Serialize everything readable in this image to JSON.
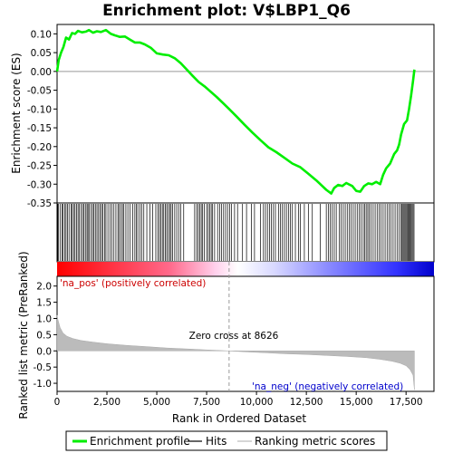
{
  "chart_data": {
    "type": "line",
    "title": "Enrichment plot: V$LBP1_Q6",
    "panels": {
      "es": {
        "ylabel": "Enrichment score (ES)",
        "ylim": [
          -0.35,
          0.125
        ],
        "yticks": [
          0.1,
          0.05,
          0.0,
          -0.05,
          -0.1,
          -0.15,
          -0.2,
          -0.25,
          -0.3,
          -0.35
        ],
        "ytick_labels": [
          "0.10",
          "0.05",
          "0.00",
          "-0.05",
          "-0.10",
          "-0.15",
          "-0.20",
          "-0.25",
          "-0.30",
          "-0.35"
        ],
        "series_color": "#00ee00",
        "points": [
          [
            0,
            0.0
          ],
          [
            80,
            0.03
          ],
          [
            200,
            0.05
          ],
          [
            320,
            0.065
          ],
          [
            450,
            0.09
          ],
          [
            600,
            0.085
          ],
          [
            750,
            0.102
          ],
          [
            900,
            0.1
          ],
          [
            1050,
            0.108
          ],
          [
            1250,
            0.104
          ],
          [
            1450,
            0.106
          ],
          [
            1600,
            0.11
          ],
          [
            1800,
            0.103
          ],
          [
            2000,
            0.107
          ],
          [
            2200,
            0.105
          ],
          [
            2450,
            0.11
          ],
          [
            2700,
            0.1
          ],
          [
            2900,
            0.096
          ],
          [
            3150,
            0.092
          ],
          [
            3400,
            0.093
          ],
          [
            3650,
            0.085
          ],
          [
            3900,
            0.077
          ],
          [
            4150,
            0.077
          ],
          [
            4400,
            0.072
          ],
          [
            4700,
            0.063
          ],
          [
            5000,
            0.048
          ],
          [
            5300,
            0.045
          ],
          [
            5600,
            0.043
          ],
          [
            5900,
            0.035
          ],
          [
            6200,
            0.022
          ],
          [
            6500,
            0.005
          ],
          [
            6800,
            -0.012
          ],
          [
            7100,
            -0.028
          ],
          [
            7400,
            -0.04
          ],
          [
            7700,
            -0.054
          ],
          [
            8000,
            -0.068
          ],
          [
            8300,
            -0.083
          ],
          [
            8626,
            -0.1
          ],
          [
            9000,
            -0.12
          ],
          [
            9400,
            -0.142
          ],
          [
            9800,
            -0.163
          ],
          [
            10200,
            -0.183
          ],
          [
            10600,
            -0.202
          ],
          [
            11000,
            -0.215
          ],
          [
            11400,
            -0.23
          ],
          [
            11800,
            -0.245
          ],
          [
            12200,
            -0.255
          ],
          [
            12600,
            -0.272
          ],
          [
            13000,
            -0.29
          ],
          [
            13300,
            -0.305
          ],
          [
            13500,
            -0.315
          ],
          [
            13750,
            -0.325
          ],
          [
            13900,
            -0.31
          ],
          [
            14100,
            -0.302
          ],
          [
            14300,
            -0.305
          ],
          [
            14500,
            -0.297
          ],
          [
            14800,
            -0.305
          ],
          [
            15000,
            -0.318
          ],
          [
            15200,
            -0.32
          ],
          [
            15400,
            -0.305
          ],
          [
            15600,
            -0.298
          ],
          [
            15800,
            -0.3
          ],
          [
            16000,
            -0.294
          ],
          [
            16200,
            -0.3
          ],
          [
            16350,
            -0.275
          ],
          [
            16500,
            -0.258
          ],
          [
            16700,
            -0.245
          ],
          [
            16900,
            -0.22
          ],
          [
            17050,
            -0.21
          ],
          [
            17150,
            -0.195
          ],
          [
            17250,
            -0.168
          ],
          [
            17400,
            -0.14
          ],
          [
            17550,
            -0.13
          ],
          [
            17650,
            -0.1
          ],
          [
            17750,
            -0.065
          ],
          [
            17850,
            -0.025
          ],
          [
            17920,
            0.005
          ]
        ]
      },
      "ranked_metric": {
        "ylabel": "Ranked list metric (PreRanked)",
        "ylim": [
          -1.25,
          2.3
        ],
        "yticks": [
          2.0,
          1.5,
          1.0,
          0.5,
          0.0,
          -0.5,
          -1.0
        ],
        "ytick_labels": [
          "2.0",
          "1.5",
          "1.0",
          "0.5",
          "0.0",
          "-0.5",
          "-1.0"
        ],
        "fill_color": "#bbbbbb",
        "profile": [
          [
            0,
            1.1
          ],
          [
            50,
            0.95
          ],
          [
            150,
            0.72
          ],
          [
            300,
            0.55
          ],
          [
            500,
            0.45
          ],
          [
            800,
            0.38
          ],
          [
            1200,
            0.32
          ],
          [
            1800,
            0.27
          ],
          [
            2500,
            0.22
          ],
          [
            3500,
            0.17
          ],
          [
            4500,
            0.13
          ],
          [
            5500,
            0.09
          ],
          [
            6500,
            0.06
          ],
          [
            7500,
            0.03
          ],
          [
            8626,
            0.0
          ],
          [
            9500,
            -0.03
          ],
          [
            10500,
            -0.06
          ],
          [
            11500,
            -0.09
          ],
          [
            12500,
            -0.11
          ],
          [
            13500,
            -0.14
          ],
          [
            14500,
            -0.17
          ],
          [
            15500,
            -0.21
          ],
          [
            16200,
            -0.26
          ],
          [
            16800,
            -0.32
          ],
          [
            17200,
            -0.38
          ],
          [
            17500,
            -0.46
          ],
          [
            17700,
            -0.58
          ],
          [
            17850,
            -0.75
          ],
          [
            17920,
            -1.2
          ]
        ],
        "zero_cross_label": "Zero cross at 8626",
        "zero_cross": 8626,
        "pos_label": "'na_pos' (positively correlated)",
        "neg_label": "'na_neg' (negatively correlated)"
      }
    },
    "x": {
      "xlabel": "Rank in Ordered Dataset",
      "xlim": [
        0,
        18900
      ],
      "ticks": [
        0,
        2500,
        5000,
        7500,
        10000,
        12500,
        15000,
        17500
      ],
      "tick_labels": [
        "0",
        "2,500",
        "5,000",
        "7,500",
        "10,000",
        "12,500",
        "15,000",
        "17,500"
      ],
      "n": 17920
    },
    "hits": [
      30,
      70,
      150,
      250,
      300,
      380,
      450,
      520,
      600,
      700,
      760,
      830,
      900,
      980,
      1050,
      1120,
      1200,
      1280,
      1350,
      1420,
      1500,
      1550,
      1620,
      1700,
      1780,
      1850,
      1920,
      2000,
      2080,
      2150,
      2230,
      2300,
      2380,
      2450,
      2550,
      2650,
      2750,
      2850,
      2950,
      3050,
      3120,
      3200,
      3280,
      3350,
      3450,
      3550,
      3650,
      3800,
      3900,
      3980,
      4050,
      4150,
      4250,
      4350,
      4500,
      4650,
      4800,
      4950,
      5050,
      5130,
      5200,
      5280,
      5350,
      5430,
      5500,
      5580,
      5650,
      5720,
      5800,
      5900,
      6000,
      6100,
      6200,
      6350,
      6900,
      7000,
      7080,
      7150,
      7230,
      7300,
      7380,
      7500,
      7580,
      7650,
      7730,
      7800,
      7900,
      8050,
      8150,
      8250,
      8350,
      8450,
      8550,
      8650,
      8750,
      8900,
      9050,
      9300,
      9500,
      9750,
      9900,
      10200,
      10350,
      10450,
      10550,
      10650,
      10750,
      10850,
      10950,
      11100,
      11200,
      11300,
      11400,
      11500,
      11600,
      11700,
      11800,
      11950,
      12100,
      12200,
      12400,
      12600,
      12800,
      13200,
      13500,
      13600,
      13700,
      13800,
      13900,
      14000,
      14150,
      14250,
      14350,
      14450,
      14550,
      14650,
      14750,
      14850,
      14950,
      15050,
      15150,
      15250,
      15350,
      15420,
      15500,
      15580,
      15650,
      15750,
      15850,
      15950,
      16050,
      16150,
      16250,
      16350,
      16450,
      16550,
      16650,
      16750,
      16850,
      16950,
      17050,
      17150,
      17250,
      17300,
      17350,
      17400,
      17450,
      17500,
      17550,
      17600,
      17650,
      17700,
      17750,
      17800,
      17850,
      17900
    ],
    "legend": [
      {
        "label": "Enrichment profile",
        "color": "#00ee00",
        "kind": "thick-line"
      },
      {
        "label": "Hits",
        "color": "#000000",
        "kind": "line"
      },
      {
        "label": "Ranking metric scores",
        "color": "#bbbbbb",
        "kind": "line"
      }
    ]
  }
}
